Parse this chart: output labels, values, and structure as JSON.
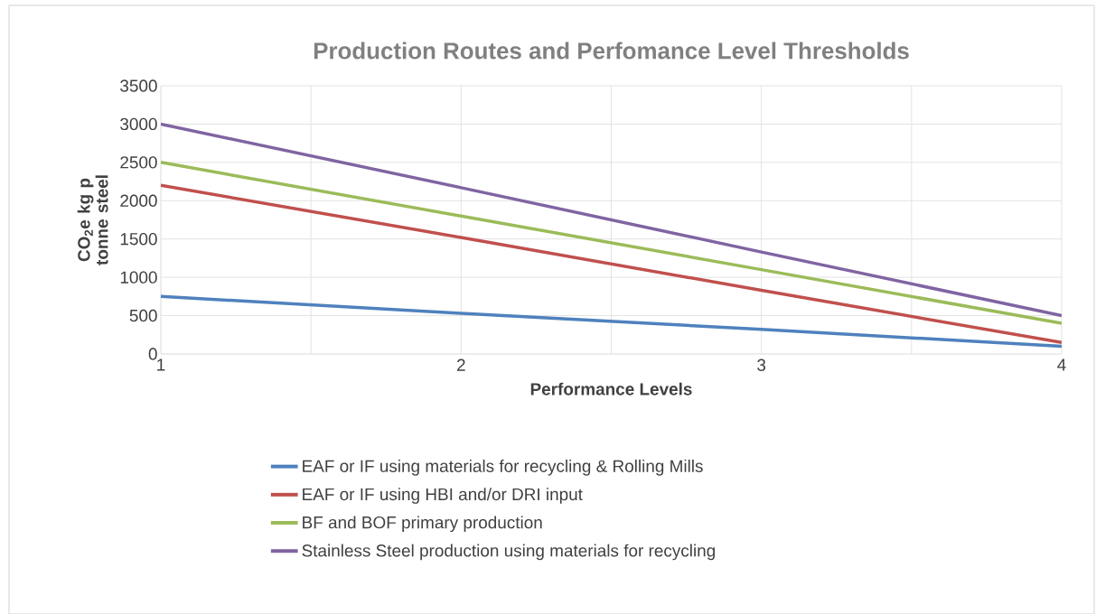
{
  "chart_data": {
    "type": "line",
    "title": "Production Routes and Perfomance Level Thresholds",
    "xlabel": "Performance Levels",
    "ylabel": "CO$_{2}$e kg p tonne steel",
    "x": [
      1,
      2,
      3,
      4
    ],
    "xlim": [
      1,
      4
    ],
    "xticks": [
      1,
      {
        "value": 1.5,
        "label": null
      },
      2,
      {
        "value": 2.5,
        "label": null
      },
      3,
      {
        "value": 3.5,
        "label": null
      },
      4
    ],
    "ylim": [
      0,
      3500
    ],
    "yticks": [
      0,
      500,
      1000,
      1500,
      2000,
      2500,
      3000,
      3500
    ],
    "grid": true,
    "legend": "bottom",
    "series": [
      {
        "name": "EAF or IF using materials for recycling & Rolling Mills",
        "color": "#4f81bd",
        "values": [
          750,
          530,
          320,
          100
        ]
      },
      {
        "name": "EAF or IF using HBI and/or DRI input",
        "color": "#c0504d",
        "values": [
          2200,
          1520,
          830,
          150
        ]
      },
      {
        "name": "BF and BOF primary production",
        "color": "#9bbb59",
        "values": [
          2500,
          1800,
          1100,
          400
        ]
      },
      {
        "name": "Stainless Steel production using materials for recycling",
        "color": "#8064a2",
        "values": [
          3000,
          2170,
          1330,
          500
        ]
      }
    ]
  }
}
